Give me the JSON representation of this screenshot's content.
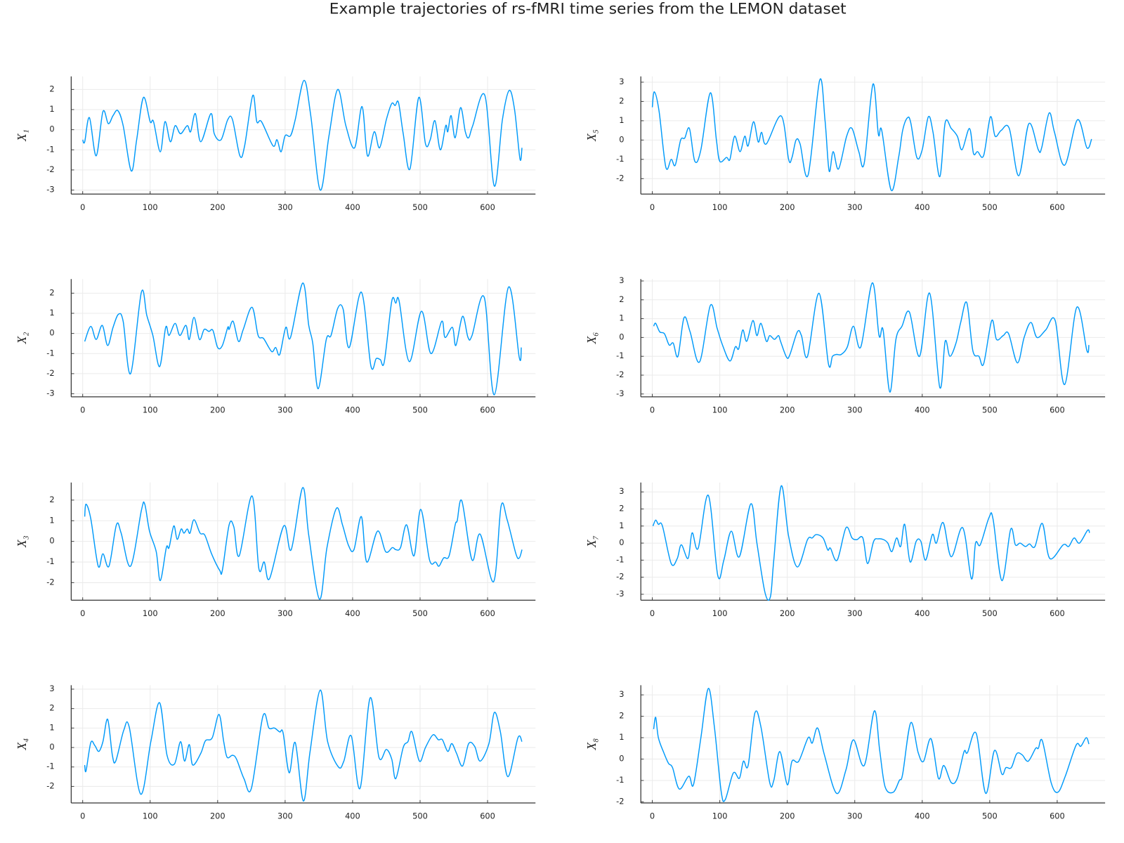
{
  "title": "Example trajectories of rs-fMRI time series from the LEMON dataset",
  "chart_data": [
    {
      "type": "line",
      "ylabel": "X₁",
      "color": "#009afa",
      "grid": true,
      "xlim": [
        -17,
        671
      ],
      "ylim": [
        -3.2,
        2.65
      ],
      "xticks": [
        0,
        100,
        200,
        300,
        400,
        500,
        600
      ],
      "yticks": [
        -3,
        -2,
        -1,
        0,
        1,
        2
      ],
      "x": [
        0,
        3,
        10,
        20,
        30,
        38,
        45,
        52,
        60,
        72,
        80,
        90,
        100,
        105,
        115,
        122,
        130,
        137,
        145,
        155,
        160,
        167,
        175,
        190,
        195,
        205,
        215,
        222,
        233,
        240,
        252,
        258,
        265,
        282,
        288,
        294,
        300,
        308,
        315,
        328,
        338,
        352,
        365,
        378,
        390,
        403,
        414,
        422,
        432,
        440,
        450,
        458,
        463,
        468,
        475,
        485,
        498,
        508,
        515,
        522,
        530,
        538,
        541,
        546,
        552,
        560,
        567,
        572,
        578,
        596,
        610,
        622,
        632,
        640,
        648,
        651
      ],
      "values": [
        -0.5,
        -0.6,
        0.6,
        -1.3,
        0.9,
        0.3,
        0.7,
        0.95,
        0.2,
        -2.05,
        -0.5,
        1.6,
        0.4,
        0.4,
        -1.1,
        0.4,
        -0.6,
        0.2,
        -0.2,
        0.2,
        -0.1,
        0.8,
        -0.6,
        0.8,
        -0.2,
        -0.5,
        0.5,
        0.5,
        -1.3,
        -0.8,
        1.7,
        0.4,
        0.4,
        -0.8,
        -0.5,
        -1.1,
        -0.3,
        -0.3,
        0.5,
        2.45,
        0.7,
        -3,
        -0.3,
        2.0,
        0.2,
        -0.9,
        1.15,
        -1.3,
        -0.1,
        -0.9,
        0.5,
        1.3,
        1.2,
        1.35,
        -0.2,
        -1.95,
        1.6,
        -0.7,
        -0.5,
        0.45,
        -1.0,
        0.2,
        -0.1,
        0.7,
        -0.4,
        1.1,
        -0.1,
        -0.4,
        0.2,
        1.7,
        -2.8,
        0.5,
        1.95,
        1.0,
        -1.45,
        -0.9
      ]
    },
    {
      "type": "line",
      "ylabel": "X₂",
      "color": "#009afa",
      "grid": true,
      "xlim": [
        -17,
        671
      ],
      "ylim": [
        -3.15,
        2.7
      ],
      "xticks": [
        0,
        100,
        200,
        300,
        400,
        500,
        600
      ],
      "yticks": [
        -3,
        -2,
        -1,
        0,
        1,
        2
      ],
      "x": [
        3,
        12,
        20,
        29,
        37,
        45,
        53,
        60,
        71,
        87,
        95,
        104,
        114,
        123,
        128,
        137,
        144,
        153,
        158,
        165,
        173,
        180,
        187,
        193,
        200,
        207,
        215,
        217,
        223,
        231,
        238,
        251,
        260,
        268,
        280,
        286,
        292,
        301,
        308,
        326,
        335,
        341,
        349,
        361,
        368,
        378,
        386,
        395,
        413,
        427,
        435,
        441,
        447,
        458,
        464,
        469,
        484,
        502,
        516,
        532,
        537,
        548,
        553,
        563,
        571,
        577,
        595,
        610,
        631,
        647,
        650
      ],
      "values": [
        -0.4,
        0.35,
        -0.3,
        0.4,
        -0.6,
        0.3,
        0.95,
        0.6,
        -2.0,
        2.05,
        0.9,
        -0.1,
        -1.65,
        0.3,
        -0.1,
        0.5,
        -0.1,
        0.4,
        -0.3,
        0.8,
        -0.3,
        0.2,
        0.1,
        0.15,
        -0.7,
        -0.6,
        0.3,
        0.2,
        0.6,
        -0.4,
        0.2,
        1.3,
        -0.1,
        -0.25,
        -0.9,
        -0.7,
        -1.05,
        0.3,
        -0.2,
        2.5,
        0.4,
        -0.5,
        -2.75,
        -0.3,
        -0.1,
        1.25,
        1.2,
        -0.7,
        2.05,
        -1.6,
        -1.25,
        -1.3,
        -1.4,
        1.6,
        1.5,
        1.6,
        -1.4,
        1.1,
        -1.0,
        0.6,
        -0.2,
        0.3,
        -0.6,
        0.85,
        -0.2,
        -0.1,
        1.8,
        -3.05,
        2.3,
        -1.2,
        -0.7
      ]
    },
    {
      "type": "line",
      "ylabel": "X₃",
      "color": "#009afa",
      "grid": true,
      "xlim": [
        -17,
        671
      ],
      "ylim": [
        -2.85,
        2.85
      ],
      "xticks": [
        0,
        100,
        200,
        300,
        400,
        500,
        600
      ],
      "yticks": [
        -2,
        -1,
        0,
        1,
        2
      ],
      "x": [
        3,
        5,
        12,
        23,
        30,
        39,
        50,
        57,
        71,
        87,
        92,
        99,
        109,
        115,
        124,
        128,
        135,
        140,
        146,
        150,
        155,
        159,
        165,
        174,
        181,
        191,
        203,
        207,
        217,
        224,
        232,
        251,
        261,
        269,
        277,
        298,
        309,
        326,
        335,
        351,
        362,
        376,
        385,
        394,
        402,
        413,
        421,
        437,
        449,
        459,
        464,
        471,
        480,
        491,
        501,
        514,
        523,
        528,
        535,
        543,
        552,
        555,
        562,
        577,
        589,
        609,
        620,
        629,
        642,
        647,
        651
      ],
      "values": [
        1.2,
        1.8,
        1.1,
        -1.2,
        -0.6,
        -1.2,
        0.8,
        0.4,
        -1.2,
        1.5,
        1.8,
        0.5,
        -0.5,
        -1.9,
        -0.3,
        -0.3,
        0.75,
        0.1,
        0.6,
        0.4,
        0.6,
        0.4,
        1.05,
        0.4,
        0.3,
        -0.6,
        -1.4,
        -1.4,
        0.8,
        0.7,
        -0.7,
        2.2,
        -1.3,
        -1.0,
        -1.8,
        0.75,
        -0.4,
        2.6,
        0.3,
        -2.8,
        -0.3,
        1.6,
        0.8,
        -0.2,
        -0.4,
        1.2,
        -1.0,
        0.5,
        -0.5,
        -0.3,
        -0.4,
        -0.3,
        0.8,
        -0.7,
        1.55,
        -0.9,
        -1.0,
        -1.2,
        -0.8,
        -0.7,
        0.8,
        1.0,
        1.95,
        -0.9,
        0.35,
        -1.95,
        1.7,
        1.05,
        -0.6,
        -0.8,
        -0.4
      ]
    },
    {
      "type": "line",
      "ylabel": "X₄",
      "color": "#009afa",
      "grid": true,
      "xlim": [
        -17,
        671
      ],
      "ylim": [
        -2.85,
        3.2
      ],
      "xticks": [
        0,
        100,
        200,
        300,
        400,
        500,
        600
      ],
      "yticks": [
        -2,
        -1,
        0,
        1,
        2,
        3
      ],
      "x": [
        3,
        5,
        12,
        18,
        24,
        30,
        37,
        44,
        49,
        61,
        69,
        86,
        101,
        114,
        125,
        136,
        145,
        151,
        158,
        163,
        175,
        182,
        192,
        202,
        209,
        214,
        222,
        228,
        239,
        250,
        267,
        276,
        284,
        292,
        297,
        306,
        315,
        327,
        337,
        352,
        363,
        379,
        387,
        398,
        411,
        426,
        439,
        450,
        458,
        464,
        475,
        482,
        488,
        499,
        508,
        519,
        527,
        533,
        541,
        547,
        554,
        563,
        572,
        581,
        589,
        602,
        610,
        619,
        630,
        645,
        651
      ],
      "values": [
        -0.9,
        -1.2,
        0.25,
        0.1,
        -0.2,
        0.3,
        1.45,
        -0.4,
        -0.7,
        0.9,
        1.05,
        -2.4,
        0.3,
        2.3,
        -0.4,
        -0.85,
        0.3,
        -0.7,
        0.15,
        -0.9,
        -0.3,
        0.35,
        0.5,
        1.7,
        0.3,
        -0.5,
        -0.4,
        -0.6,
        -1.6,
        -2.1,
        1.6,
        1.0,
        1.0,
        0.8,
        0.75,
        -1.3,
        0.25,
        -2.75,
        -0.2,
        2.95,
        0.3,
        -1.0,
        -0.7,
        0.6,
        -2.1,
        2.55,
        -0.5,
        -0.1,
        -0.6,
        -1.6,
        0.0,
        0.3,
        0.8,
        -0.7,
        0.0,
        0.65,
        0.4,
        0.4,
        -0.2,
        0.2,
        -0.3,
        -0.95,
        0.2,
        0.05,
        -0.7,
        0.2,
        1.8,
        0.8,
        -1.5,
        0.5,
        0.3
      ]
    },
    {
      "type": "line",
      "ylabel": "X₅",
      "color": "#009afa",
      "grid": true,
      "xlim": [
        -17,
        671
      ],
      "ylim": [
        -2.8,
        3.3
      ],
      "xticks": [
        0,
        100,
        200,
        300,
        400,
        500,
        600
      ],
      "yticks": [
        -2,
        -1,
        0,
        1,
        2,
        3
      ],
      "x": [
        0,
        3,
        10,
        20,
        28,
        34,
        42,
        48,
        55,
        63,
        72,
        86,
        95,
        100,
        110,
        115,
        122,
        130,
        137,
        142,
        150,
        157,
        162,
        169,
        191,
        202,
        207,
        213,
        219,
        231,
        248,
        256,
        262,
        268,
        276,
        288,
        296,
        306,
        314,
        327,
        335,
        340,
        354,
        365,
        371,
        378,
        383,
        392,
        400,
        409,
        416,
        426,
        434,
        443,
        452,
        459,
        470,
        476,
        482,
        491,
        501,
        508,
        517,
        529,
        543,
        558,
        572,
        577,
        588,
        596,
        611,
        630,
        644,
        651
      ],
      "values": [
        1.7,
        2.5,
        1.5,
        -1.4,
        -1.0,
        -1.3,
        0.0,
        0.1,
        0.6,
        -1.1,
        -0.5,
        2.45,
        0.0,
        -1.1,
        -0.9,
        -1.0,
        0.2,
        -0.6,
        0.2,
        -0.3,
        0.95,
        -0.1,
        0.4,
        -0.2,
        1.25,
        -1.0,
        -0.9,
        0.0,
        -0.2,
        -1.8,
        3.1,
        1.0,
        -1.6,
        -0.6,
        -1.5,
        0.2,
        0.6,
        -0.6,
        -1.2,
        2.9,
        0.3,
        0.5,
        -2.6,
        -0.9,
        0.5,
        1.15,
        0.9,
        -0.9,
        -0.5,
        1.2,
        0.4,
        -1.9,
        0.9,
        0.6,
        0.2,
        -0.5,
        0.6,
        -0.7,
        -0.6,
        -0.8,
        1.2,
        0.2,
        0.5,
        0.6,
        -1.85,
        0.85,
        -0.5,
        -0.4,
        1.4,
        0.4,
        -1.3,
        1.05,
        -0.4,
        0.05
      ]
    },
    {
      "type": "line",
      "ylabel": "X₆",
      "color": "#009afa",
      "grid": true,
      "xlim": [
        -17,
        671
      ],
      "ylim": [
        -3.15,
        3.1
      ],
      "xticks": [
        0,
        100,
        200,
        300,
        400,
        500,
        600
      ],
      "yticks": [
        -3,
        -2,
        -1,
        0,
        1,
        2,
        3
      ],
      "x": [
        2,
        5,
        11,
        18,
        25,
        31,
        38,
        47,
        56,
        70,
        86,
        96,
        104,
        115,
        123,
        128,
        134,
        140,
        149,
        155,
        161,
        169,
        174,
        181,
        187,
        190,
        199,
        204,
        215,
        221,
        230,
        247,
        261,
        267,
        273,
        280,
        289,
        298,
        309,
        326,
        336,
        342,
        352,
        361,
        370,
        381,
        396,
        411,
        426,
        434,
        441,
        450,
        457,
        466,
        475,
        484,
        491,
        503,
        510,
        520,
        528,
        541,
        551,
        561,
        570,
        583,
        597,
        611,
        629,
        644,
        647
      ],
      "values": [
        0.6,
        0.75,
        0.3,
        0.2,
        -0.4,
        -0.3,
        -1.0,
        1.05,
        0.3,
        -1.3,
        1.7,
        0.5,
        -0.4,
        -1.25,
        -0.5,
        -0.6,
        0.4,
        -0.2,
        0.9,
        0.1,
        0.75,
        -0.2,
        0.1,
        -0.1,
        0.1,
        -0.2,
        -1.05,
        -0.9,
        0.3,
        0.1,
        -1.0,
        2.35,
        -1.4,
        -1.0,
        -0.9,
        -0.9,
        -0.5,
        0.6,
        -0.5,
        2.9,
        0.1,
        0.4,
        -2.9,
        -0.1,
        0.6,
        1.35,
        -1.0,
        2.35,
        -2.65,
        -0.2,
        -1.0,
        -0.3,
        0.8,
        1.85,
        -0.7,
        -1.0,
        -1.4,
        0.9,
        -0.1,
        0.1,
        0.2,
        -1.35,
        0.0,
        0.8,
        0.0,
        0.4,
        0.9,
        -2.5,
        1.6,
        -0.7,
        -0.4
      ]
    },
    {
      "type": "line",
      "ylabel": "X₇",
      "color": "#009afa",
      "grid": true,
      "xlim": [
        -17,
        671
      ],
      "ylim": [
        -3.35,
        3.55
      ],
      "xticks": [
        0,
        100,
        200,
        300,
        400,
        500,
        600
      ],
      "yticks": [
        -3,
        -2,
        -1,
        0,
        1,
        2,
        3
      ],
      "x": [
        1,
        5,
        9,
        15,
        28,
        37,
        43,
        53,
        59,
        68,
        83,
        97,
        106,
        117,
        129,
        146,
        155,
        167,
        175,
        180,
        191,
        202,
        215,
        230,
        237,
        243,
        253,
        260,
        264,
        274,
        287,
        296,
        303,
        312,
        319,
        328,
        335,
        343,
        349,
        355,
        362,
        368,
        374,
        382,
        391,
        398,
        405,
        415,
        421,
        431,
        443,
        460,
        473,
        479,
        486,
        499,
        505,
        518,
        531,
        538,
        545,
        553,
        559,
        567,
        578,
        589,
        609,
        617,
        625,
        633,
        645,
        648
      ],
      "values": [
        1.0,
        1.35,
        1.1,
        1.0,
        -1.2,
        -0.9,
        -0.1,
        -0.9,
        0.6,
        -0.3,
        2.8,
        -1.9,
        -1.0,
        0.7,
        -0.8,
        2.3,
        0.0,
        -2.9,
        -3.15,
        -1.0,
        3.35,
        0.4,
        -1.4,
        0.2,
        0.3,
        0.5,
        0.3,
        -0.4,
        -0.3,
        -1.0,
        0.9,
        0.3,
        0.2,
        0.3,
        -1.2,
        0.1,
        0.25,
        0.2,
        0.0,
        -0.5,
        0.3,
        -0.2,
        1.1,
        -1.1,
        0.1,
        0.1,
        -1.0,
        0.5,
        0.0,
        1.2,
        -0.8,
        0.9,
        -2.1,
        0.0,
        -0.1,
        1.5,
        1.4,
        -2.2,
        0.8,
        -0.1,
        0.0,
        -0.2,
        -0.05,
        -0.2,
        1.15,
        -0.9,
        -0.1,
        -0.2,
        0.3,
        0.0,
        0.75,
        0.6
      ]
    },
    {
      "type": "line",
      "ylabel": "X₈",
      "color": "#009afa",
      "grid": true,
      "xlim": [
        -17,
        671
      ],
      "ylim": [
        -2.05,
        3.45
      ],
      "xticks": [
        0,
        100,
        200,
        300,
        400,
        500,
        600
      ],
      "yticks": [
        -2,
        -1,
        0,
        1,
        2,
        3
      ],
      "x": [
        2,
        5,
        9,
        17,
        24,
        30,
        40,
        54,
        61,
        72,
        83,
        92,
        102,
        108,
        120,
        129,
        135,
        142,
        152,
        161,
        174,
        180,
        189,
        200,
        207,
        217,
        231,
        237,
        245,
        255,
        273,
        287,
        298,
        314,
        329,
        337,
        345,
        357,
        366,
        371,
        383,
        394,
        402,
        413,
        424,
        432,
        443,
        452,
        462,
        467,
        480,
        494,
        507,
        518,
        524,
        532,
        540,
        548,
        557,
        568,
        572,
        578,
        591,
        601,
        612,
        628,
        635,
        643,
        647
      ],
      "values": [
        1.4,
        1.95,
        1.0,
        0.3,
        -0.2,
        -0.4,
        -1.4,
        -0.8,
        -1.2,
        1.0,
        3.3,
        1.5,
        -1.5,
        -1.9,
        -0.65,
        -0.9,
        -0.1,
        -0.3,
        2.15,
        1.5,
        -1.1,
        -1.0,
        0.35,
        -1.2,
        -0.1,
        -0.1,
        1.0,
        0.75,
        1.45,
        0.2,
        -1.6,
        -0.5,
        0.9,
        -0.3,
        2.25,
        0.4,
        -1.3,
        -1.55,
        -1.0,
        -0.7,
        1.7,
        0.3,
        -0.1,
        0.95,
        -0.9,
        -0.3,
        -1.1,
        -0.9,
        0.35,
        0.3,
        1.2,
        -1.6,
        0.4,
        -0.7,
        -0.4,
        -0.4,
        0.25,
        0.2,
        -0.1,
        0.5,
        0.5,
        0.85,
        -1.1,
        -1.55,
        -0.8,
        0.65,
        0.6,
        1.0,
        0.7
      ]
    }
  ]
}
